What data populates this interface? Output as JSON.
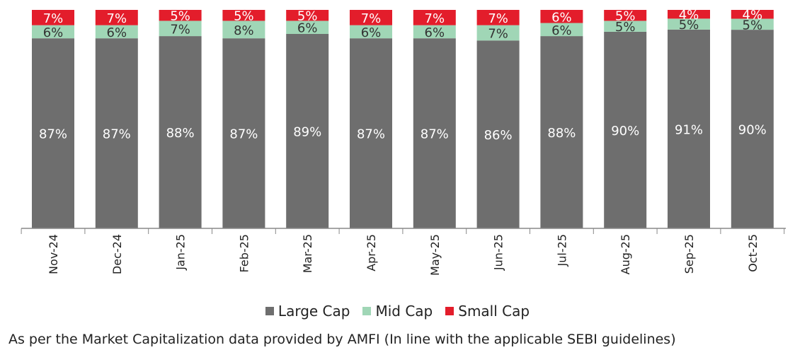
{
  "chart_data": {
    "type": "bar",
    "stacked": true,
    "categories": [
      "Nov-24",
      "Dec-24",
      "Jan-25",
      "Feb-25",
      "Mar-25",
      "Apr-25",
      "May-25",
      "Jun-25",
      "Jul-25",
      "Aug-25",
      "Sep-25",
      "Oct-25"
    ],
    "series": [
      {
        "name": "Large Cap",
        "color": "#6e6e6e",
        "values": [
          87,
          87,
          88,
          87,
          89,
          87,
          87,
          86,
          88,
          90,
          91,
          90
        ]
      },
      {
        "name": "Mid Cap",
        "color": "#a0d6b6",
        "values": [
          6,
          6,
          7,
          8,
          6,
          6,
          6,
          7,
          6,
          5,
          5,
          5
        ]
      },
      {
        "name": "Small Cap",
        "color": "#e31d2b",
        "values": [
          7,
          7,
          5,
          5,
          5,
          7,
          7,
          7,
          6,
          5,
          4,
          4
        ]
      }
    ],
    "ylim": [
      0,
      100
    ],
    "value_suffix": "%",
    "legend_position": "bottom",
    "footnote": "As per the Market Capitalization data provided by AMFI (In line with the applicable SEBI guidelines)"
  }
}
